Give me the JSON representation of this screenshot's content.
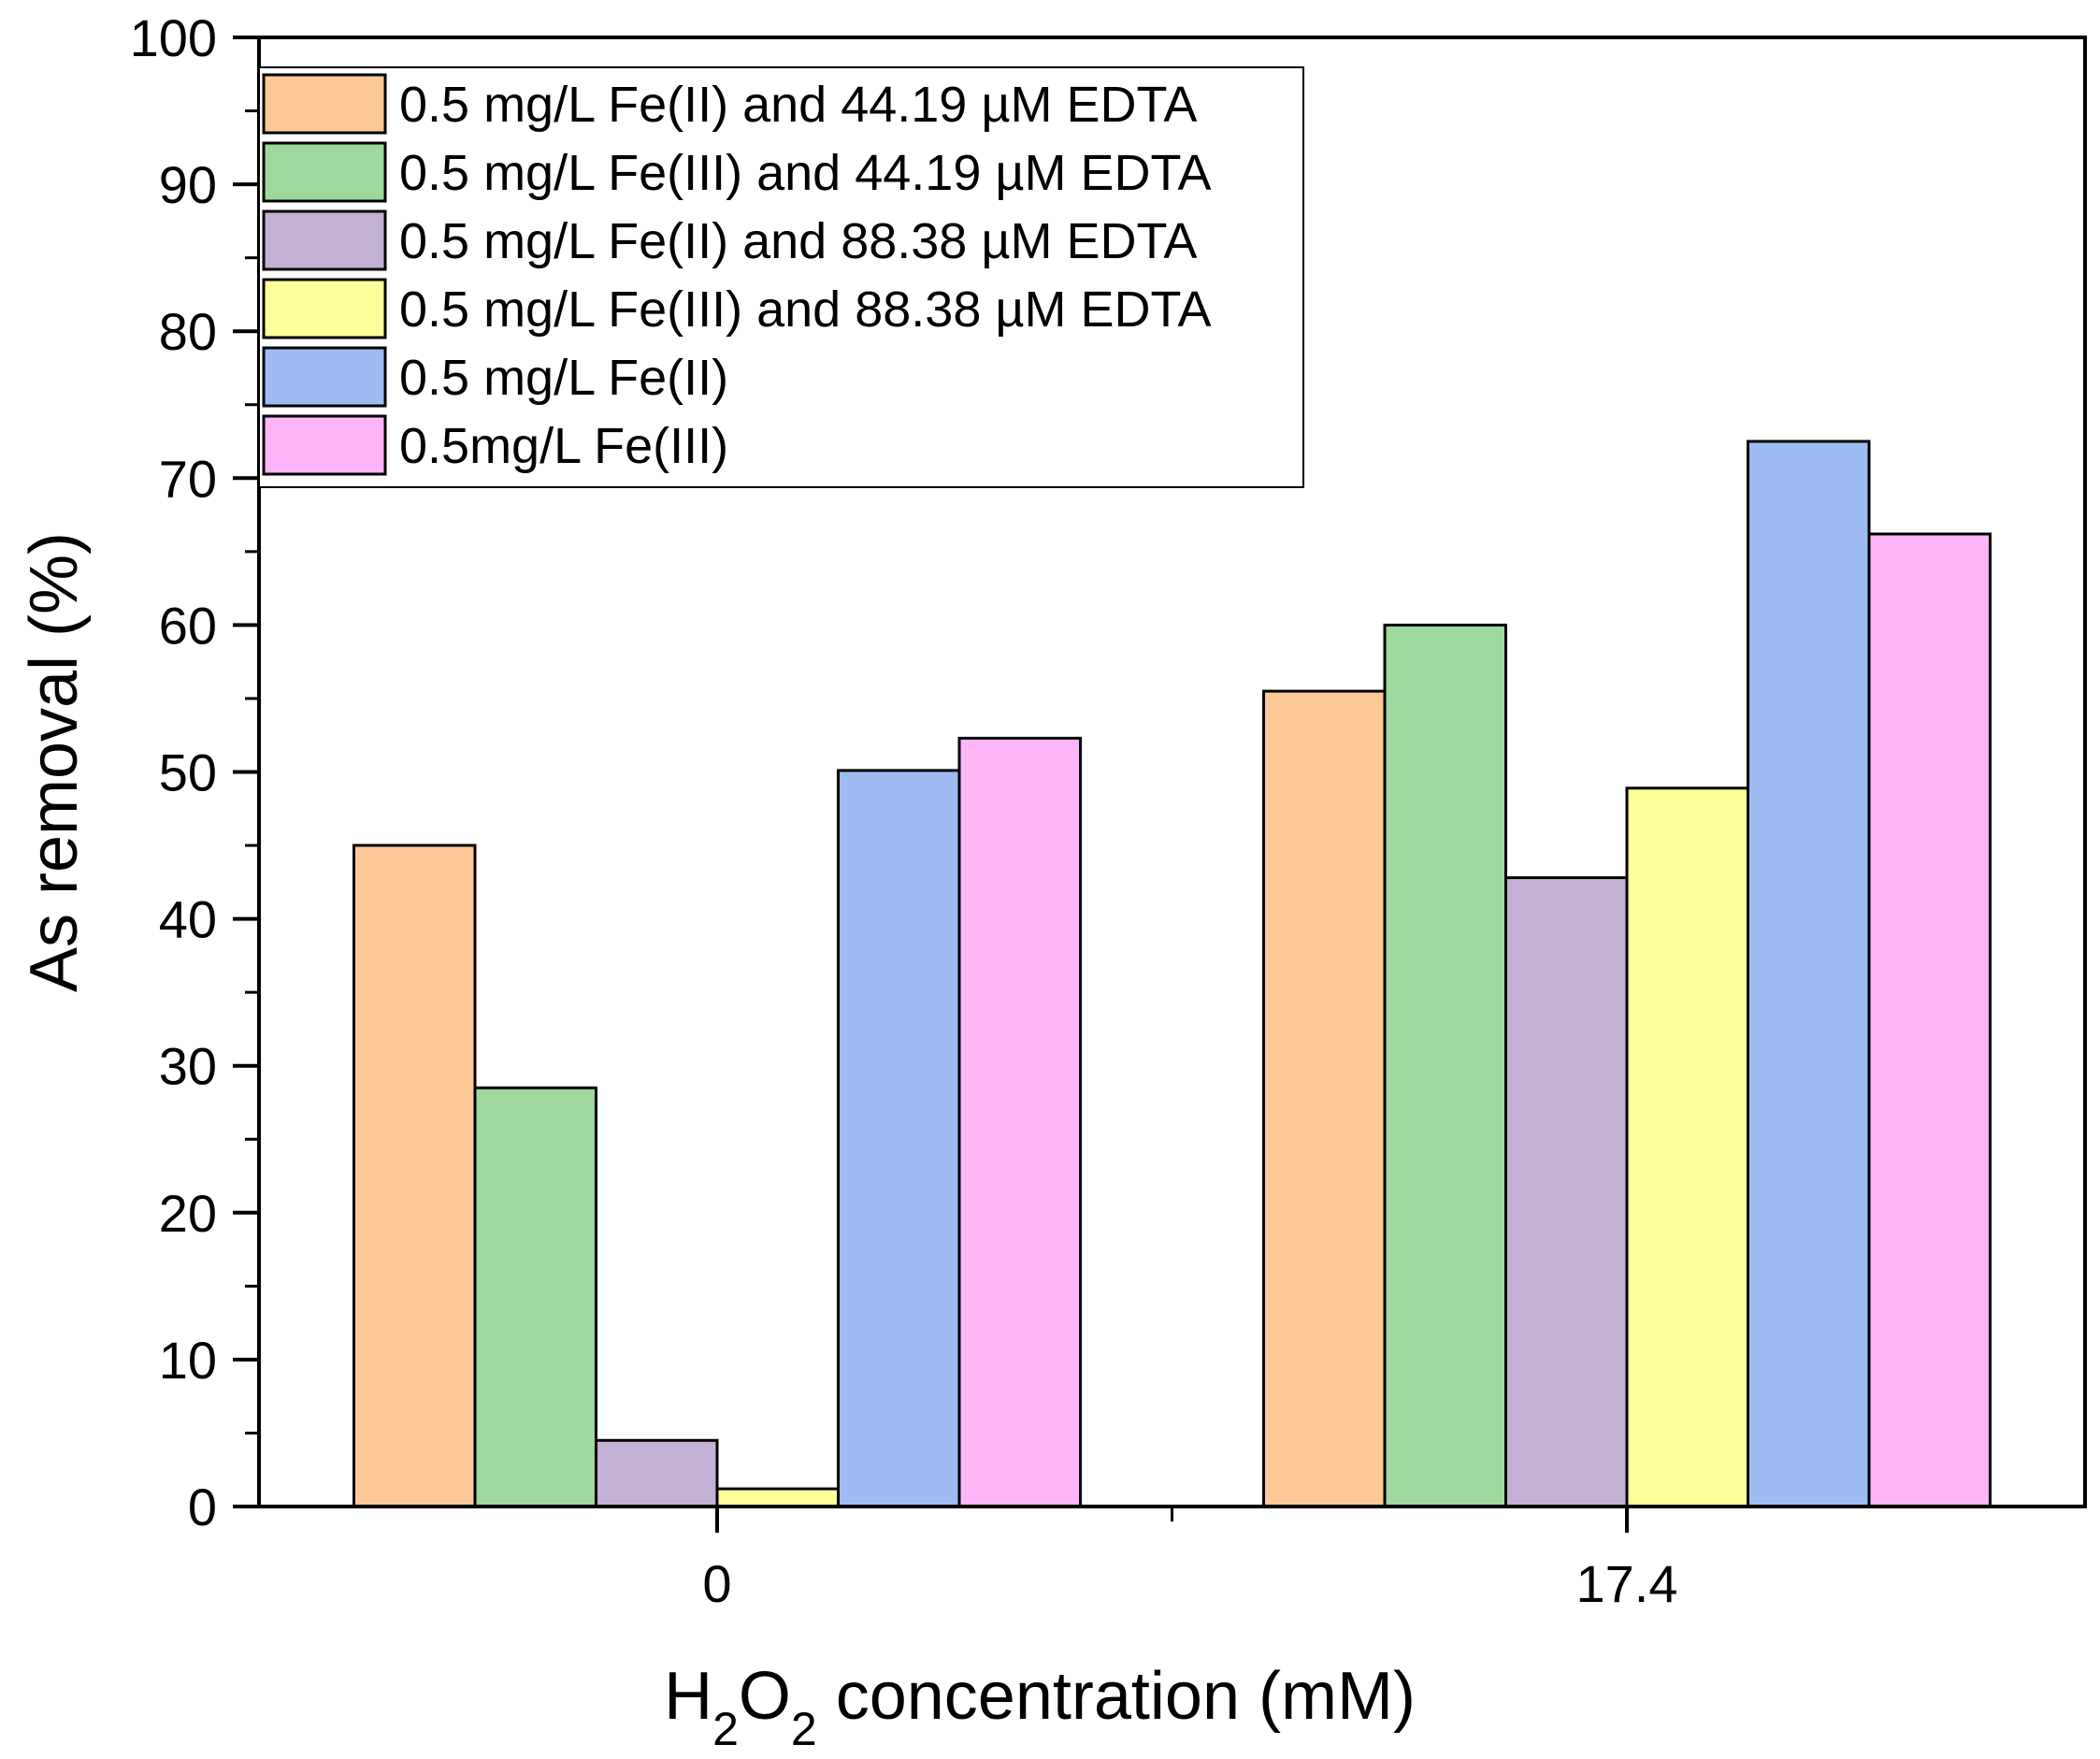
{
  "chart_data": {
    "type": "bar",
    "categories": [
      "0",
      "17.4"
    ],
    "series": [
      {
        "name": "0.5 mg/L Fe(II) and 44.19 µM EDTA",
        "color": "#fcc896",
        "values": [
          45.0,
          55.5
        ]
      },
      {
        "name": "0.5 mg/L Fe(III) and 44.19 µM EDTA",
        "color": "#9ed89c",
        "values": [
          28.5,
          60.0
        ]
      },
      {
        "name": "0.5 mg/L Fe(II) and 88.38 µM EDTA",
        "color": "#c3b1d5",
        "values": [
          4.5,
          42.8
        ]
      },
      {
        "name": "0.5 mg/L Fe(III) and 88.38 µM EDTA",
        "color": "#fefe9b",
        "values": [
          1.2,
          48.9
        ]
      },
      {
        "name": "0.5 mg/L Fe(II)",
        "color": "#9ebbf2",
        "values": [
          50.1,
          72.5
        ]
      },
      {
        "name": "0.5mg/L Fe(III)",
        "color": "#fdb5f7",
        "values": [
          52.3,
          66.2
        ]
      }
    ],
    "title": "",
    "xlabel": {
      "main": "H",
      "sub1": "2",
      "mid": "O",
      "sub2": "2",
      "rest": " concentration (mM)"
    },
    "ylabel": "As removal (%)",
    "ylim": [
      0,
      100
    ],
    "yticks": [
      "0",
      "10",
      "20",
      "30",
      "40",
      "50",
      "60",
      "70",
      "80",
      "90",
      "100"
    ],
    "legend_position": "top-left",
    "grid": false
  }
}
